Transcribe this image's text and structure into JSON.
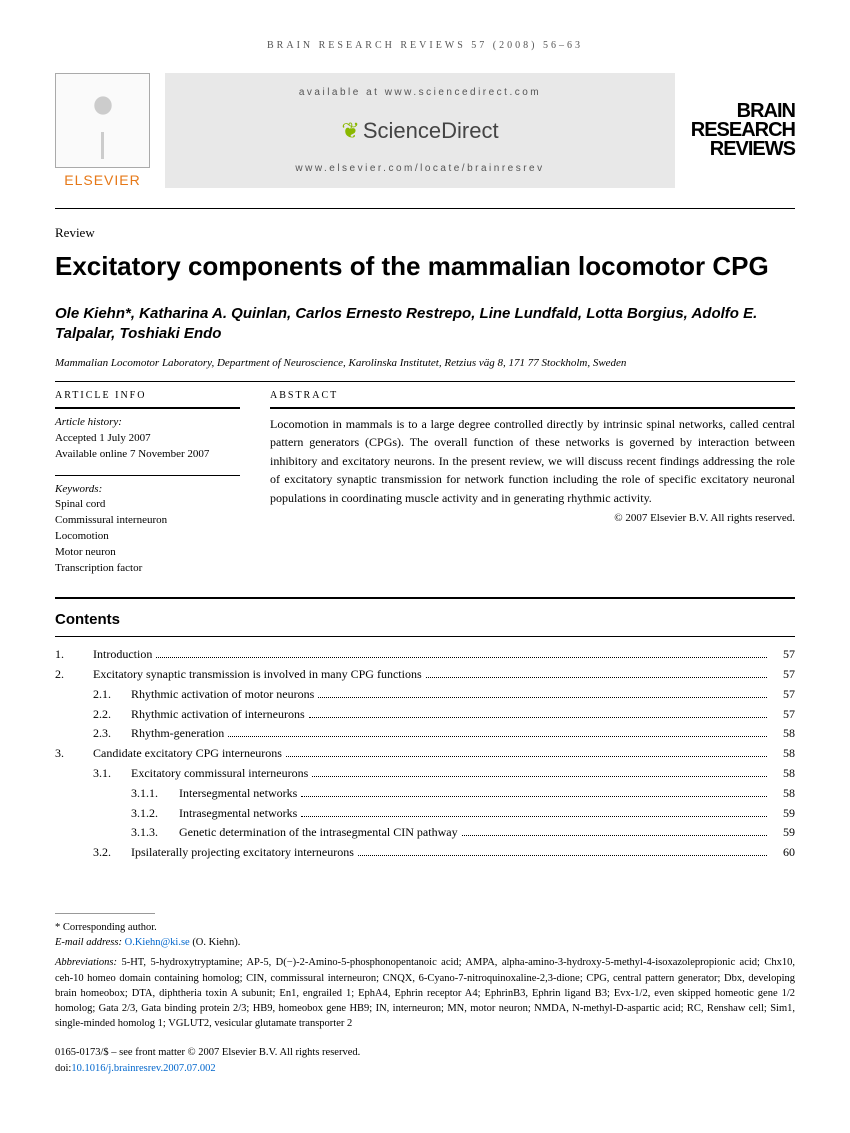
{
  "running_header": "BRAIN RESEARCH REVIEWS 57 (2008) 56–63",
  "header": {
    "elsevier": "ELSEVIER",
    "available": "available at www.sciencedirect.com",
    "sciencedirect": "ScienceDirect",
    "journal_link": "www.elsevier.com/locate/brainresrev",
    "journal_title_l1": "BRAIN",
    "journal_title_l2": "RESEARCH",
    "journal_title_l3": "REVIEWS"
  },
  "article_type": "Review",
  "title": "Excitatory components of the mammalian locomotor CPG",
  "authors": "Ole Kiehn*, Katharina A. Quinlan, Carlos Ernesto Restrepo, Line Lundfald, Lotta Borgius, Adolfo E. Talpalar, Toshiaki Endo",
  "affiliation": "Mammalian Locomotor Laboratory, Department of Neuroscience, Karolinska Institutet, Retzius väg 8, 171 77 Stockholm, Sweden",
  "info": {
    "section_label": "ARTICLE INFO",
    "history_label": "Article history:",
    "accepted": "Accepted 1 July 2007",
    "online": "Available online 7 November 2007",
    "keywords_label": "Keywords:",
    "kw1": "Spinal cord",
    "kw2": "Commissural interneuron",
    "kw3": "Locomotion",
    "kw4": "Motor neuron",
    "kw5": "Transcription factor"
  },
  "abstract": {
    "section_label": "ABSTRACT",
    "text": "Locomotion in mammals is to a large degree controlled directly by intrinsic spinal networks, called central pattern generators (CPGs). The overall function of these networks is governed by interaction between inhibitory and excitatory neurons. In the present review, we will discuss recent findings addressing the role of excitatory synaptic transmission for network function including the role of specific excitatory neuronal populations in coordinating muscle activity and in generating rhythmic activity.",
    "copyright": "© 2007 Elsevier B.V. All rights reserved."
  },
  "contents_title": "Contents",
  "toc": [
    {
      "n": "1.",
      "l": 0,
      "t": "Introduction",
      "p": "57"
    },
    {
      "n": "2.",
      "l": 0,
      "t": "Excitatory synaptic transmission is involved in many CPG functions",
      "p": "57"
    },
    {
      "n": "2.1.",
      "l": 1,
      "t": "Rhythmic activation of motor neurons",
      "p": "57"
    },
    {
      "n": "2.2.",
      "l": 1,
      "t": "Rhythmic activation of interneurons",
      "p": "57"
    },
    {
      "n": "2.3.",
      "l": 1,
      "t": "Rhythm-generation",
      "p": "58"
    },
    {
      "n": "3.",
      "l": 0,
      "t": "Candidate excitatory CPG interneurons",
      "p": "58"
    },
    {
      "n": "3.1.",
      "l": 1,
      "t": "Excitatory commissural interneurons",
      "p": "58"
    },
    {
      "n": "3.1.1.",
      "l": 2,
      "t": "Intersegmental networks",
      "p": "58"
    },
    {
      "n": "3.1.2.",
      "l": 2,
      "t": "Intrasegmental networks",
      "p": "59"
    },
    {
      "n": "3.1.3.",
      "l": 2,
      "t": "Genetic determination of the intrasegmental CIN pathway",
      "p": "59"
    },
    {
      "n": "3.2.",
      "l": 1,
      "t": "Ipsilaterally projecting excitatory interneurons",
      "p": "60"
    }
  ],
  "footer": {
    "corr_label": "* Corresponding author.",
    "email_label": "E-mail address:",
    "email": "O.Kiehn@ki.se",
    "email_who": "(O. Kiehn).",
    "abbrev_label": "Abbreviations:",
    "abbrev": "5-HT, 5-hydroxytryptamine; AP-5, D(−)-2-Amino-5-phosphonopentanoic acid; AMPA, alpha-amino-3-hydroxy-5-methyl-4-isoxazolepropionic acid; Chx10, ceh-10 homeo domain containing homolog; CIN, commissural interneuron; CNQX, 6-Cyano-7-nitroquinoxaline-2,3-dione; CPG, central pattern generator; Dbx, developing brain homeobox; DTA, diphtheria toxin A subunit; En1, engrailed 1; EphA4, Ephrin receptor A4; EphrinB3, Ephrin ligand B3; Evx-1/2, even skipped homeotic gene 1/2 homolog; Gata 2/3, Gata binding protein 2/3; HB9, homeobox gene HB9; IN, interneuron; MN, motor neuron; NMDA, N-methyl-D-aspartic acid; RC, Renshaw cell; Sim1, single-minded homolog 1; VGLUT2, vesicular glutamate transporter 2",
    "issn": "0165-0173/$ – see front matter © 2007 Elsevier B.V. All rights reserved.",
    "doi_label": "doi:",
    "doi": "10.1016/j.brainresrev.2007.07.002"
  }
}
